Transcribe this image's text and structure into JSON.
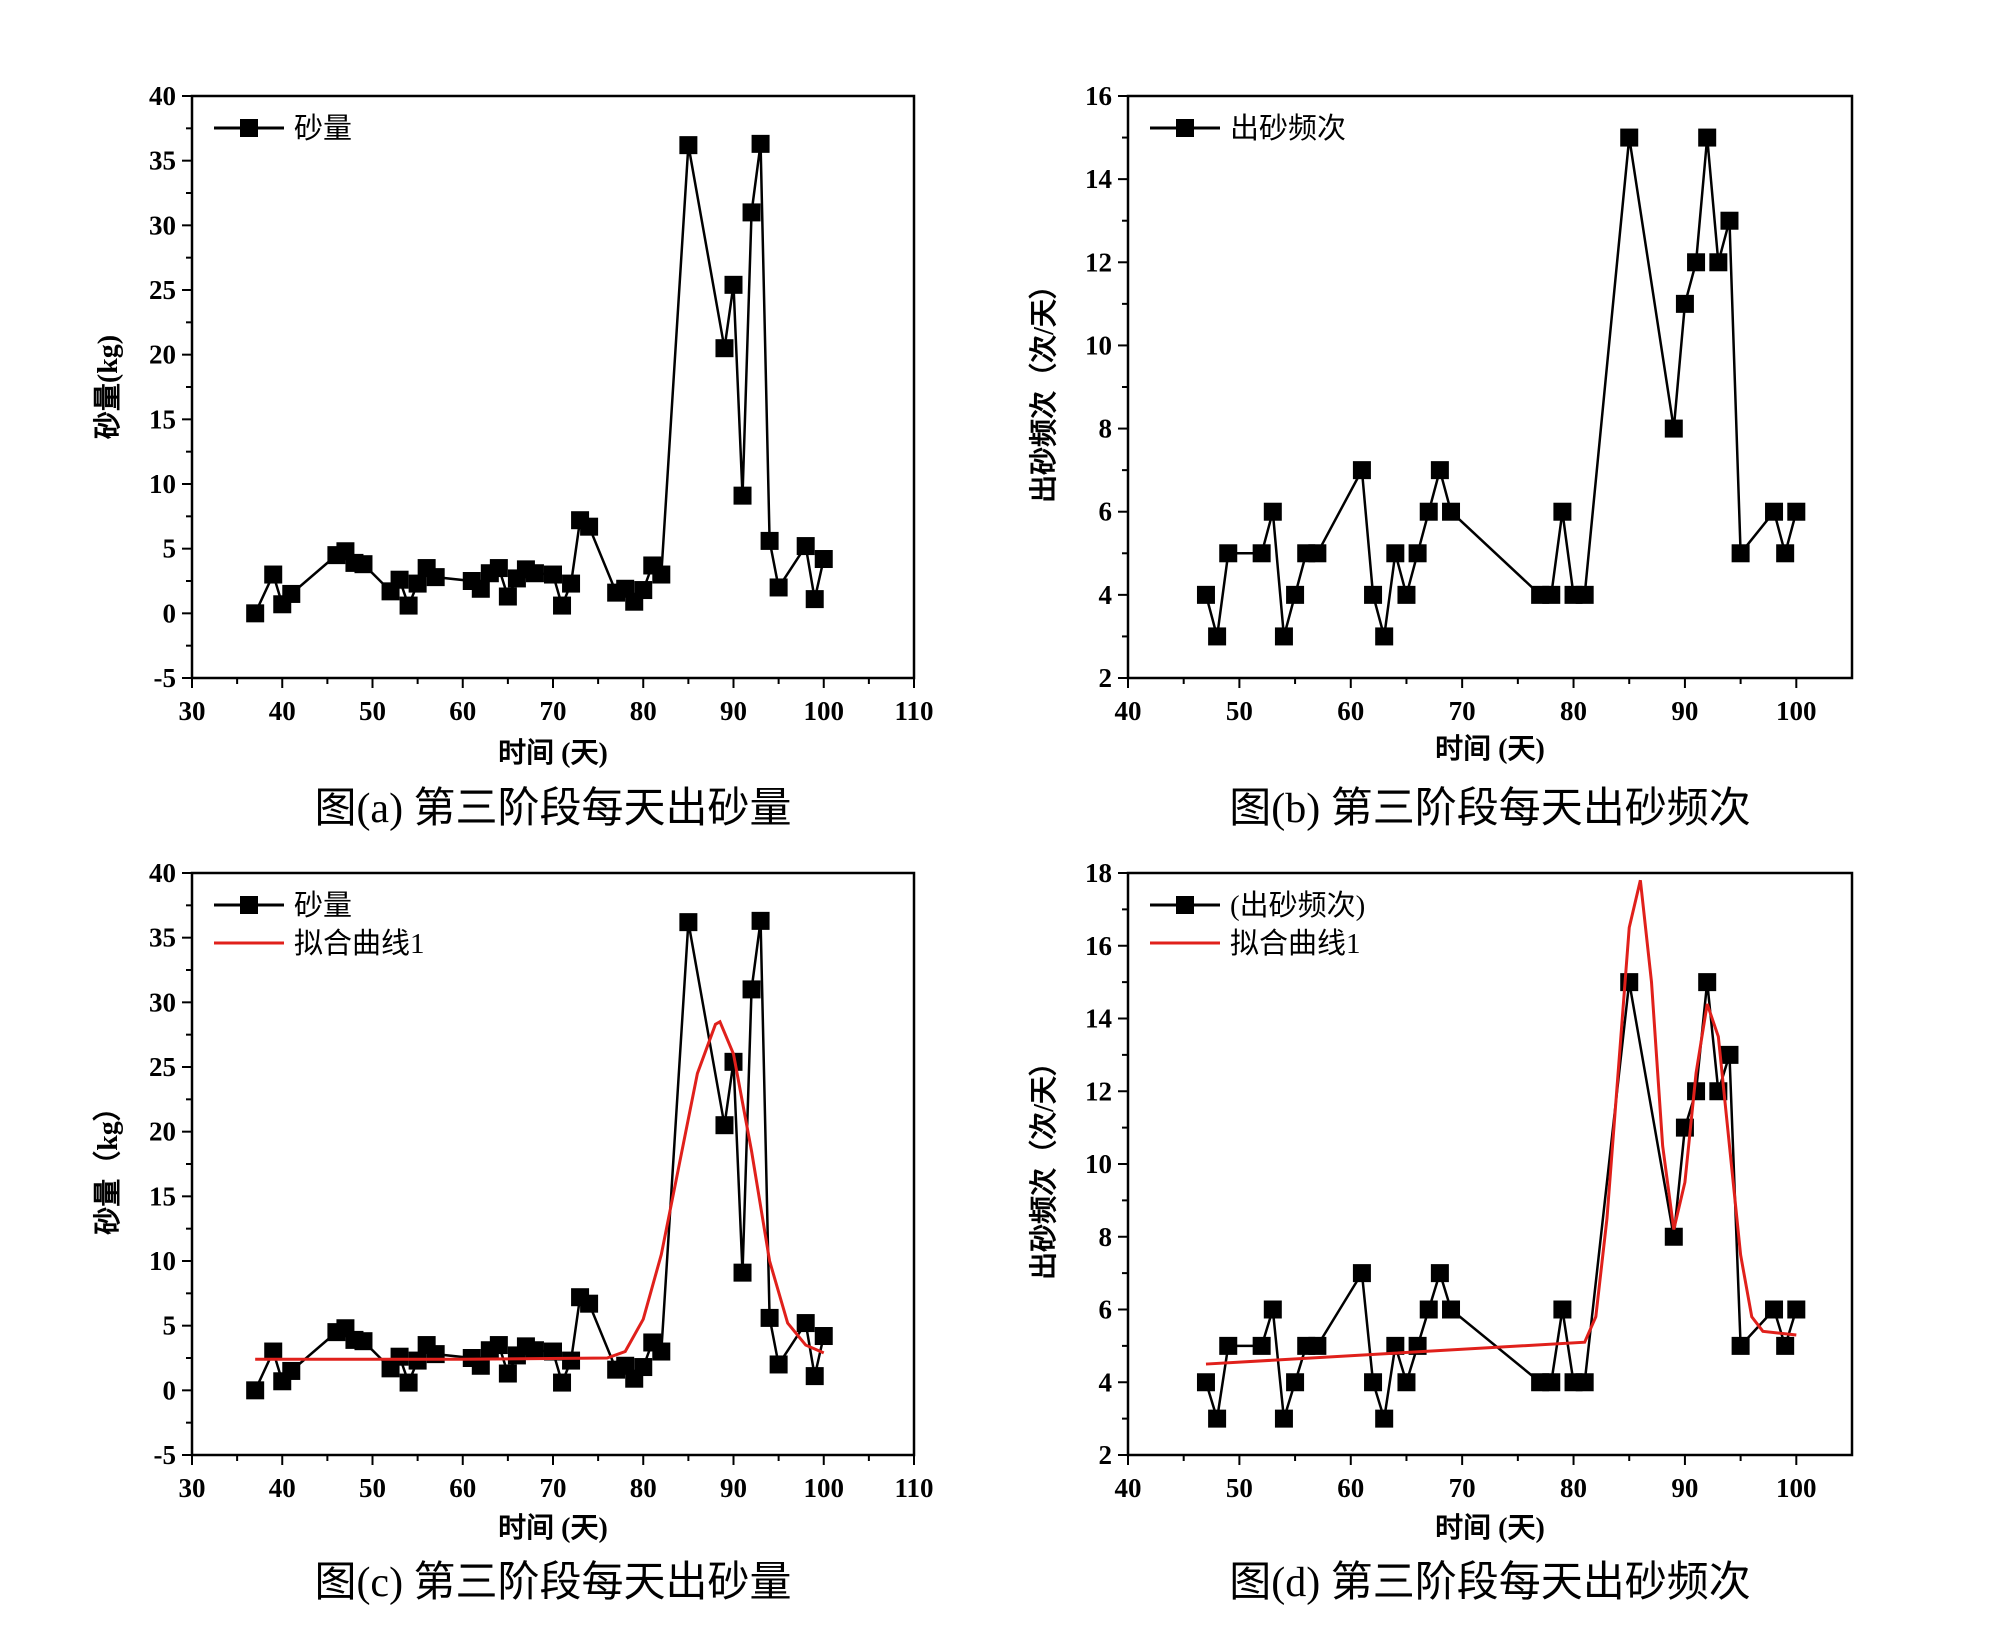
{
  "chart_data": [
    {
      "id": "a",
      "type": "line",
      "caption": "图(a) 第三阶段每天出砂量",
      "xlabel": "时间 (天)",
      "ylabel": "砂量(kg)",
      "xlim": [
        30,
        110
      ],
      "ylim": [
        -5,
        40
      ],
      "xticks": [
        30,
        40,
        50,
        60,
        70,
        80,
        90,
        100,
        110
      ],
      "yticks": [
        -5,
        0,
        5,
        10,
        15,
        20,
        25,
        30,
        35,
        40
      ],
      "legend_position": "top-left",
      "series": [
        {
          "name": "砂量",
          "color": "#000000",
          "marker": "square",
          "x": [
            37,
            39,
            40,
            41,
            46,
            47,
            48,
            49,
            52,
            53,
            54,
            55,
            56,
            57,
            61,
            62,
            63,
            64,
            65,
            66,
            67,
            68,
            70,
            71,
            72,
            73,
            74,
            77,
            78,
            79,
            80,
            81,
            82,
            85,
            89,
            90,
            91,
            92,
            93,
            94,
            95,
            98,
            99,
            100
          ],
          "y": [
            0,
            3,
            0.7,
            1.5,
            4.5,
            4.8,
            3.9,
            3.8,
            1.7,
            2.6,
            0.6,
            2.3,
            3.5,
            2.8,
            2.5,
            1.9,
            3.1,
            3.5,
            1.3,
            2.7,
            3.4,
            3.1,
            3.0,
            0.6,
            2.3,
            7.2,
            6.7,
            1.6,
            1.9,
            0.9,
            1.8,
            3.7,
            3.0,
            36.2,
            20.5,
            25.4,
            9.1,
            31.0,
            36.3,
            5.6,
            2.0,
            5.2,
            1.1,
            4.2
          ]
        }
      ]
    },
    {
      "id": "b",
      "type": "line",
      "caption": "图(b) 第三阶段每天出砂频次",
      "xlabel": "时间 (天)",
      "ylabel": "出砂频次（次/天）",
      "xlim": [
        40,
        105
      ],
      "ylim": [
        2,
        16
      ],
      "xticks": [
        40,
        50,
        60,
        70,
        80,
        90,
        100
      ],
      "yticks": [
        2,
        4,
        6,
        8,
        10,
        12,
        14,
        16
      ],
      "legend_position": "top-left",
      "series": [
        {
          "name": "出砂频次",
          "color": "#000000",
          "marker": "square",
          "x": [
            47,
            48,
            49,
            52,
            53,
            54,
            55,
            56,
            57,
            61,
            62,
            63,
            64,
            65,
            66,
            67,
            68,
            69,
            77,
            78,
            79,
            80,
            81,
            85,
            89,
            90,
            91,
            92,
            93,
            94,
            95,
            98,
            99,
            100
          ],
          "y": [
            4,
            3,
            5,
            5,
            6,
            3,
            4,
            5,
            5,
            7,
            4,
            3,
            5,
            4,
            5,
            6,
            7,
            6,
            4,
            4,
            6,
            4,
            4,
            15,
            8,
            11,
            12,
            15,
            12,
            13,
            5,
            6,
            5,
            6
          ]
        }
      ]
    },
    {
      "id": "c",
      "type": "line",
      "caption": "图(c) 第三阶段每天出砂量",
      "xlabel": "时间 (天)",
      "ylabel": "砂量（kg）",
      "xlim": [
        30,
        110
      ],
      "ylim": [
        -5,
        40
      ],
      "xticks": [
        30,
        40,
        50,
        60,
        70,
        80,
        90,
        100,
        110
      ],
      "yticks": [
        -5,
        0,
        5,
        10,
        15,
        20,
        25,
        30,
        35,
        40
      ],
      "legend_position": "top-left",
      "series": [
        {
          "name": "砂量",
          "color": "#000000",
          "marker": "square",
          "x": [
            37,
            39,
            40,
            41,
            46,
            47,
            48,
            49,
            52,
            53,
            54,
            55,
            56,
            57,
            61,
            62,
            63,
            64,
            65,
            66,
            67,
            68,
            70,
            71,
            72,
            73,
            74,
            77,
            78,
            79,
            80,
            81,
            82,
            85,
            89,
            90,
            91,
            92,
            93,
            94,
            95,
            98,
            99,
            100
          ],
          "y": [
            0,
            3,
            0.7,
            1.5,
            4.5,
            4.8,
            3.9,
            3.8,
            1.7,
            2.6,
            0.6,
            2.3,
            3.5,
            2.8,
            2.5,
            1.9,
            3.1,
            3.5,
            1.3,
            2.7,
            3.4,
            3.1,
            3.0,
            0.6,
            2.3,
            7.2,
            6.7,
            1.6,
            1.9,
            0.9,
            1.8,
            3.7,
            3.0,
            36.2,
            20.5,
            25.4,
            9.1,
            31.0,
            36.3,
            5.6,
            2.0,
            5.2,
            1.1,
            4.2
          ]
        },
        {
          "name": "拟合曲线1",
          "color": "#e0201b",
          "marker": "none",
          "x": [
            37,
            60,
            76,
            78,
            80,
            82,
            84,
            86,
            88,
            88.5,
            90,
            92,
            94,
            96,
            98,
            100
          ],
          "y": [
            2.4,
            2.4,
            2.5,
            3.0,
            5.5,
            10.5,
            17.5,
            24.5,
            28.3,
            28.5,
            26,
            18.5,
            10,
            5.2,
            3.5,
            2.9
          ]
        }
      ]
    },
    {
      "id": "d",
      "type": "line",
      "caption": "图(d) 第三阶段每天出砂频次",
      "xlabel": "时间 (天)",
      "ylabel": "出砂频次（次/天）",
      "xlim": [
        40,
        105
      ],
      "ylim": [
        2,
        18
      ],
      "xticks": [
        40,
        50,
        60,
        70,
        80,
        90,
        100
      ],
      "yticks": [
        2,
        4,
        6,
        8,
        10,
        12,
        14,
        16,
        18
      ],
      "legend_position": "top-left",
      "series": [
        {
          "name": "(出砂频次)",
          "color": "#000000",
          "marker": "square",
          "x": [
            47,
            48,
            49,
            52,
            53,
            54,
            55,
            56,
            57,
            61,
            62,
            63,
            64,
            65,
            66,
            67,
            68,
            69,
            77,
            78,
            79,
            80,
            81,
            85,
            89,
            90,
            91,
            92,
            93,
            94,
            95,
            98,
            99,
            100
          ],
          "y": [
            4,
            3,
            5,
            5,
            6,
            3,
            4,
            5,
            5,
            7,
            4,
            3,
            5,
            4,
            5,
            6,
            7,
            6,
            4,
            4,
            6,
            4,
            4,
            15,
            8,
            11,
            12,
            15,
            12,
            13,
            5,
            6,
            5,
            6
          ]
        },
        {
          "name": "拟合曲线1",
          "color": "#e0201b",
          "marker": "none",
          "x": [
            47,
            81,
            82,
            83,
            84,
            85,
            86,
            87,
            88,
            89,
            90,
            91,
            92,
            93,
            94,
            95,
            96,
            97,
            100
          ],
          "y": [
            4.5,
            5.1,
            5.8,
            8.5,
            12.5,
            16.5,
            17.8,
            15,
            10.5,
            8.2,
            9.5,
            12.5,
            14.4,
            13.5,
            10.5,
            7.5,
            5.8,
            5.4,
            5.3
          ]
        }
      ]
    }
  ]
}
